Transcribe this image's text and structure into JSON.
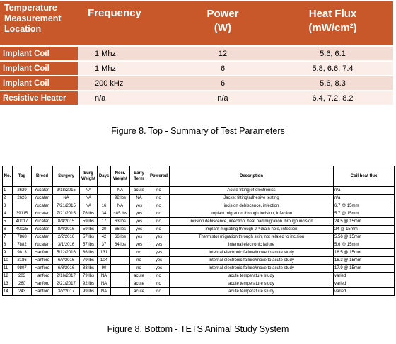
{
  "top_table": {
    "headers": [
      "Temperature Measurement Location",
      "Frequency",
      "Power (W)",
      "Heat Flux (mW/cm²)"
    ],
    "header_lines": {
      "location": [
        "Temperature",
        "Measurement",
        "Location"
      ],
      "frequency": "Frequency",
      "power": [
        "Power",
        "(W)"
      ],
      "heat_flux": [
        "Heat Flux",
        "(mW/cm²)"
      ]
    },
    "rows": [
      {
        "location": "Implant Coil",
        "frequency": "1 Mhz",
        "power": "12",
        "heat_flux": "5.6, 6.1"
      },
      {
        "location": "Implant Coil",
        "frequency": "1 Mhz",
        "power": "6",
        "heat_flux": "5.8, 6.6, 7.4"
      },
      {
        "location": "Implant Coil",
        "frequency": "200 kHz",
        "power": "6",
        "heat_flux": "5.6, 8.3"
      },
      {
        "location": "Resistive Heater",
        "frequency": "n/a",
        "power": "n/a",
        "heat_flux": "6.4, 7.2, 8.2"
      }
    ]
  },
  "caption_top": "Figure 8.  Top - Summary of Test Parameters",
  "bottom_table": {
    "headers": [
      "No.",
      "Tag",
      "Breed",
      "Surgery",
      "Surg Weight",
      "Days",
      "Necr. Weight",
      "Early Term",
      "Powered",
      "Description",
      "Coil heat flux"
    ],
    "rows": [
      [
        "1",
        "2629",
        "Yucatan",
        "3/18/2015",
        "NA",
        "",
        "NA",
        "acute",
        "no",
        "Acute fitting of electronics",
        "n/a"
      ],
      [
        "2",
        "2626",
        "Yucatan",
        "NA",
        "NA",
        "",
        "92 lbs",
        "NA",
        "no",
        "Jacket fitting/adhesive testing",
        "n/a"
      ],
      [
        "3",
        "",
        "Yucatan",
        "7/21/2015",
        "NA",
        "16",
        "NA",
        "yes",
        "no",
        "incision dehiscence, infection",
        "6.7 @ 15mm"
      ],
      [
        "4",
        "39115",
        "Yucatan",
        "7/21/2015",
        "76 lbs",
        "34",
        "~85 lbs",
        "yes",
        "no",
        "implant migration through incision, infection",
        "5.7 @ 15mm"
      ],
      [
        "5",
        "40017",
        "Yucatan",
        "8/4/2015",
        "59 lbs",
        "17",
        "63 lbs",
        "yes",
        "no",
        "incision dehiscence, infection, heat pad migration through incision",
        "24.5 @ 15mm"
      ],
      [
        "6",
        "40025",
        "Yucatan",
        "8/4/2016",
        "59 lbs",
        "20",
        "66 lbs",
        "yes",
        "no",
        "implant migrating through JP drain hole, infection",
        "24 @ 15mm"
      ],
      [
        "7",
        "7868",
        "Yucatan",
        "2/2/2016",
        "57 lbs",
        "42",
        "66 lbs",
        "yes",
        "yes",
        "Thermistor migration through skin, not related to incision",
        "5.56 @ 15mm"
      ],
      [
        "8",
        "7882",
        "Yucatan",
        "3/1/2016",
        "57 lbs",
        "37",
        "64 lbs",
        "yes",
        "yes",
        "Internal electronic failure",
        "5.6 @ 15mm"
      ],
      [
        "9",
        "9813",
        "Hanford",
        "5/12/2016",
        "86 lbs",
        "131",
        "",
        "no",
        "yes",
        "Internal electronic failure/move to acute study",
        "16.5 @ 15mm"
      ],
      [
        "10",
        "2186",
        "Hanford",
        "6/7/2016",
        "79 lbs",
        "104",
        "",
        "no",
        "yes",
        "Internal electronic failure/move to acute study",
        "16.3 @ 15mm"
      ],
      [
        "11",
        "9807",
        "Hanford",
        "6/8/2016",
        "83 lbs",
        "90",
        "",
        "no",
        "yes",
        "Internal electronic failure/move to acute study",
        "17.9 @ 15mm"
      ],
      [
        "12",
        "203",
        "Hanford",
        "2/16/2017",
        "79 lbs",
        "NA",
        "",
        "acute",
        "no",
        "acute temperature study",
        "varied"
      ],
      [
        "13",
        "260",
        "Hanford",
        "2/21/2017",
        "92 lbs",
        "NA",
        "",
        "acute",
        "no",
        "acute temperature study",
        "varied"
      ],
      [
        "14",
        "243",
        "Hanford",
        "3/7/2017",
        "99 lbs",
        "NA",
        "",
        "acute",
        "no",
        "acute temperature study",
        "varied"
      ]
    ]
  },
  "caption_bottom": "Figure 8.  Bottom - TETS Animal Study System",
  "colors": {
    "header_orange": "#c8582a",
    "row_shade_dark": "#f2dcd3",
    "row_shade_light": "#fbeee9"
  }
}
